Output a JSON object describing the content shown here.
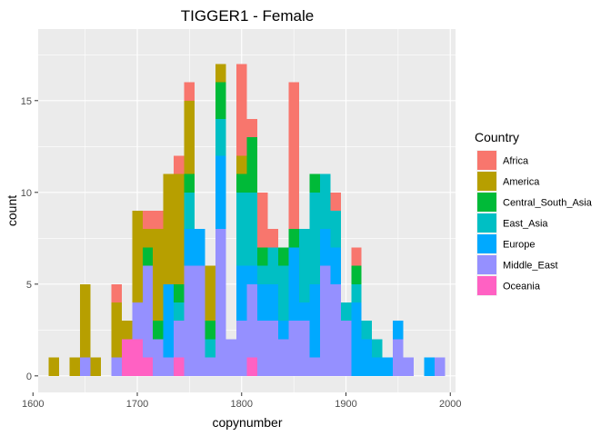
{
  "chart_data": {
    "type": "bar",
    "stacked": true,
    "histogram": true,
    "title": "TIGGER1 - Female",
    "xlabel": "copynumber",
    "ylabel": "count",
    "xlim": [
      1605,
      2005
    ],
    "ylim": [
      -0.9,
      18.9
    ],
    "x_ticks": [
      1600,
      1700,
      1800,
      1900,
      2000
    ],
    "y_ticks": [
      0,
      5,
      10,
      15
    ],
    "bin_width": 10,
    "grid": true,
    "legend_position": "right",
    "legend_title": "Country",
    "x": [
      1620,
      1630,
      1640,
      1650,
      1660,
      1670,
      1680,
      1690,
      1700,
      1710,
      1720,
      1730,
      1740,
      1750,
      1760,
      1770,
      1780,
      1790,
      1800,
      1810,
      1820,
      1830,
      1840,
      1850,
      1860,
      1870,
      1880,
      1890,
      1900,
      1910,
      1920,
      1930,
      1940,
      1950,
      1960,
      1970,
      1980,
      1990
    ],
    "series": [
      {
        "name": "Africa",
        "color": "#F8766D",
        "values": [
          0,
          0,
          0,
          0,
          0,
          0,
          1,
          0,
          0,
          1,
          1,
          0,
          1,
          1,
          0,
          0,
          0,
          0,
          5,
          1,
          3,
          1,
          0,
          8,
          0,
          0,
          0,
          1,
          0,
          1,
          0,
          0,
          0,
          0,
          0,
          0,
          0,
          0
        ]
      },
      {
        "name": "America",
        "color": "#B79F00",
        "values": [
          1,
          0,
          1,
          4,
          1,
          0,
          3,
          1,
          5,
          1,
          5,
          6,
          6,
          4,
          0,
          3,
          1,
          0,
          1,
          0,
          0,
          0,
          0,
          0,
          0,
          0,
          0,
          0,
          0,
          0,
          0,
          0,
          0,
          0,
          0,
          0,
          0,
          0
        ]
      },
      {
        "name": "Central_South_Asia",
        "color": "#00BA38",
        "values": [
          0,
          0,
          0,
          0,
          0,
          0,
          0,
          0,
          0,
          1,
          1,
          0,
          1,
          1,
          0,
          1,
          2,
          0,
          1,
          3,
          1,
          0,
          1,
          1,
          0,
          1,
          0,
          0,
          0,
          1,
          0,
          0,
          0,
          0,
          0,
          0,
          0,
          0
        ]
      },
      {
        "name": "East_Asia",
        "color": "#00BFC4",
        "values": [
          0,
          0,
          0,
          0,
          0,
          0,
          0,
          0,
          0,
          0,
          0,
          0,
          1,
          2,
          0,
          1,
          2,
          0,
          4,
          4,
          1,
          2,
          3,
          0,
          4,
          5,
          3,
          2,
          1,
          1,
          1,
          1,
          0,
          0,
          0,
          0,
          0,
          0
        ]
      },
      {
        "name": "Europe",
        "color": "#00A9FF",
        "values": [
          0,
          0,
          0,
          0,
          0,
          0,
          0,
          0,
          0,
          0,
          0,
          4,
          0,
          2,
          2,
          0,
          4,
          0,
          3,
          1,
          2,
          2,
          1,
          4,
          1,
          4,
          2,
          2,
          0,
          4,
          2,
          1,
          1,
          1,
          0,
          0,
          1,
          0
        ]
      },
      {
        "name": "Middle_East",
        "color": "#9590FF",
        "values": [
          0,
          0,
          0,
          1,
          0,
          0,
          1,
          0,
          2,
          5,
          2,
          1,
          2,
          6,
          6,
          1,
          8,
          2,
          3,
          4,
          3,
          3,
          2,
          3,
          3,
          1,
          6,
          5,
          3,
          0,
          0,
          0,
          0,
          2,
          1,
          0,
          0,
          1
        ]
      },
      {
        "name": "Oceania",
        "color": "#FF61C3",
        "values": [
          0,
          0,
          0,
          0,
          0,
          0,
          0,
          2,
          2,
          1,
          0,
          0,
          1,
          0,
          0,
          0,
          0,
          0,
          0,
          1,
          0,
          0,
          0,
          0,
          0,
          0,
          0,
          0,
          0,
          0,
          0,
          0,
          0,
          0,
          0,
          0,
          0,
          0
        ]
      }
    ]
  }
}
